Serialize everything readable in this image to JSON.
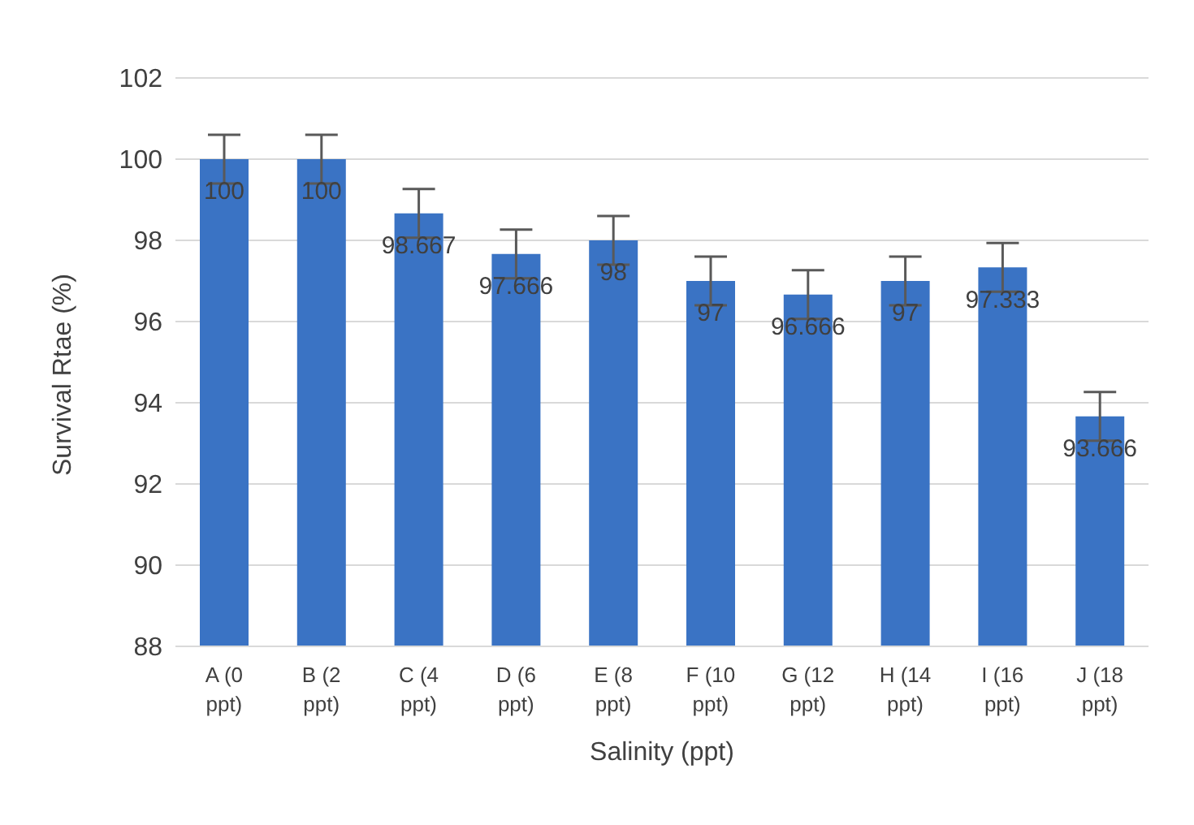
{
  "chart_data": {
    "type": "bar",
    "xlabel": "Salinity (ppt)",
    "ylabel": "Survival Rtae (%)",
    "categories": [
      "A (0 ppt)",
      "B (2 ppt)",
      "C (4 ppt)",
      "D (6 ppt)",
      "E (8 ppt)",
      "F (10 ppt)",
      "G (12 ppt)",
      "H (14 ppt)",
      "I (16 ppt)",
      "J (18 ppt)"
    ],
    "values": [
      100,
      100,
      98.667,
      97.666,
      98,
      97,
      96.666,
      97,
      97.333,
      93.666
    ],
    "errors": [
      0.6,
      0.6,
      0.6,
      0.6,
      0.6,
      0.6,
      0.6,
      0.6,
      0.6,
      0.6
    ],
    "color": "#3a73c4",
    "ylim": [
      88,
      102
    ],
    "yticks": [
      88,
      90,
      92,
      94,
      96,
      98,
      100,
      102
    ],
    "grid": "y",
    "data_labels": true
  }
}
